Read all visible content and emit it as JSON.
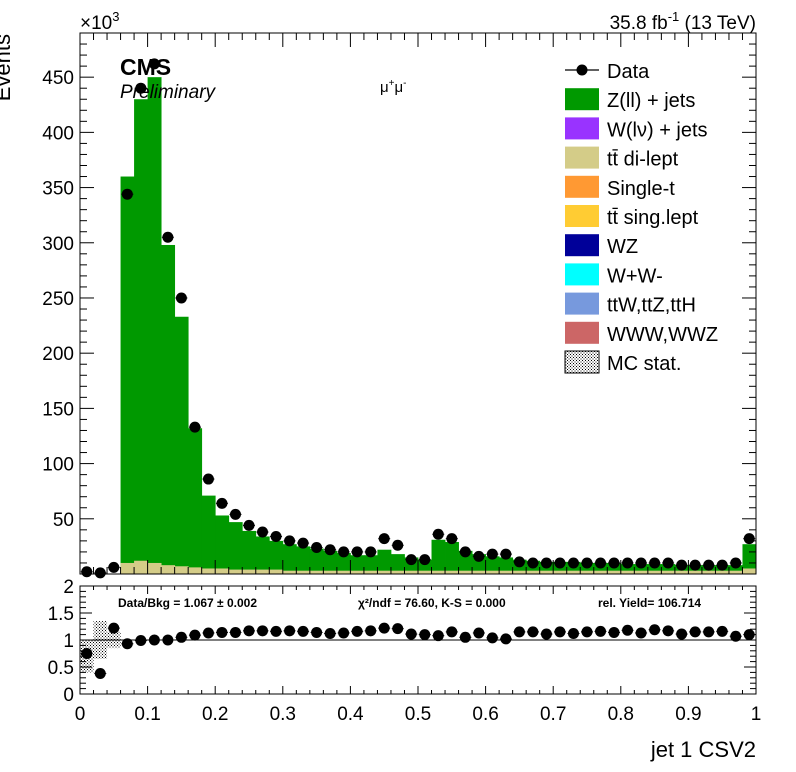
{
  "header": {
    "exponent_base": "×10",
    "exponent_power": "3",
    "lumi_value": "35.8 fb",
    "lumi_power": "-1",
    "energy": "(13 TeV)",
    "cms": "CMS",
    "preliminary": "Preliminary",
    "channel_mu1": "μ",
    "channel_sup1": "+",
    "channel_mu2": "μ",
    "channel_sup2": "-"
  },
  "ratio_info": {
    "data_bkg": "Data/Bkg = 1.067 ± 0.002",
    "chi2": "χ²/ndf = 76.60,   K-S = 0.000",
    "yield": "rel. Yield= 106.714"
  },
  "legend": {
    "items": [
      {
        "label": "Data",
        "kind": "marker",
        "color": "#000000"
      },
      {
        "label": "Z(ll) + jets",
        "kind": "box",
        "color": "#009900"
      },
      {
        "label": "W(lν) + jets",
        "kind": "box",
        "color": "#9933ff"
      },
      {
        "label": "tt̄ di-lept",
        "kind": "box",
        "color": "#d4cc88"
      },
      {
        "label": "Single-t",
        "kind": "box",
        "color": "#ff9933"
      },
      {
        "label": "tt̄ sing.lept",
        "kind": "box",
        "color": "#ffcc33"
      },
      {
        "label": "WZ",
        "kind": "box",
        "color": "#000099"
      },
      {
        "label": "W+W-",
        "kind": "box",
        "color": "#00ffff"
      },
      {
        "label": "ttW,ttZ,ttH",
        "kind": "box",
        "color": "#7799dd"
      },
      {
        "label": "WWW,WWZ",
        "kind": "box",
        "color": "#cc6666"
      },
      {
        "label": "MC stat.",
        "kind": "hatch",
        "color": "#000000"
      }
    ]
  },
  "chart_data": {
    "type": "bar",
    "xlabel": "jet 1 CSV2",
    "ylabel": "Events",
    "xlim": [
      0,
      1
    ],
    "ylim": [
      0,
      490
    ],
    "y_unit_multiplier": 1000,
    "xticks": [
      "0",
      "0.1",
      "0.2",
      "0.3",
      "0.4",
      "0.5",
      "0.6",
      "0.7",
      "0.8",
      "0.9",
      "1"
    ],
    "yticks": [
      "50",
      "100",
      "150",
      "200",
      "250",
      "300",
      "350",
      "400",
      "450"
    ],
    "bin_width": 0.02,
    "series": [
      {
        "name": "Z(ll) + jets",
        "color": "#009900",
        "values": [
          0,
          0,
          0,
          350,
          418,
          440,
          290,
          226,
          126,
          66,
          48,
          43,
          35,
          30,
          26,
          24,
          22,
          20,
          18,
          16,
          14,
          14,
          19,
          15,
          12,
          10,
          28,
          26,
          18,
          15,
          13,
          12,
          10,
          9,
          8,
          8,
          8,
          7,
          7,
          7,
          6,
          6,
          6,
          6,
          5,
          5,
          5,
          5,
          5,
          22
        ]
      },
      {
        "name": "tt̄ di-lept",
        "color": "#d4cc88",
        "values": [
          0,
          0,
          0,
          10,
          12,
          10,
          8,
          7,
          6,
          5,
          5,
          4,
          4,
          4,
          4,
          3,
          3,
          3,
          3,
          3,
          3,
          3,
          3,
          3,
          3,
          3,
          3,
          3,
          3,
          3,
          3,
          3,
          3,
          3,
          3,
          3,
          3,
          3,
          3,
          3,
          3,
          3,
          3,
          3,
          3,
          3,
          3,
          3,
          3,
          5
        ]
      }
    ],
    "data": [
      2,
      1,
      6,
      344,
      440,
      462,
      305,
      250,
      133,
      86,
      64,
      54,
      44,
      38,
      34,
      30,
      28,
      24,
      22,
      20,
      20,
      20,
      32,
      26,
      13,
      13,
      36,
      32,
      20,
      16,
      18,
      18,
      11,
      10,
      10,
      10,
      10,
      10,
      10,
      10,
      10,
      10,
      10,
      10,
      8,
      8,
      8,
      8,
      10,
      32
    ],
    "ratio": {
      "ylim": [
        0,
        2
      ],
      "yticks": [
        "0",
        "0.5",
        "1",
        "1.5",
        "2"
      ],
      "values": [
        0.75,
        0.38,
        1.22,
        0.93,
        0.99,
        1.0,
        1.0,
        1.05,
        1.09,
        1.13,
        1.14,
        1.14,
        1.17,
        1.17,
        1.16,
        1.17,
        1.16,
        1.14,
        1.12,
        1.13,
        1.16,
        1.17,
        1.22,
        1.21,
        1.11,
        1.1,
        1.08,
        1.15,
        1.05,
        1.13,
        1.04,
        1.02,
        1.15,
        1.15,
        1.11,
        1.15,
        1.12,
        1.15,
        1.16,
        1.14,
        1.18,
        1.13,
        1.19,
        1.17,
        1.11,
        1.15,
        1.15,
        1.16,
        1.07,
        1.1
      ]
    }
  }
}
